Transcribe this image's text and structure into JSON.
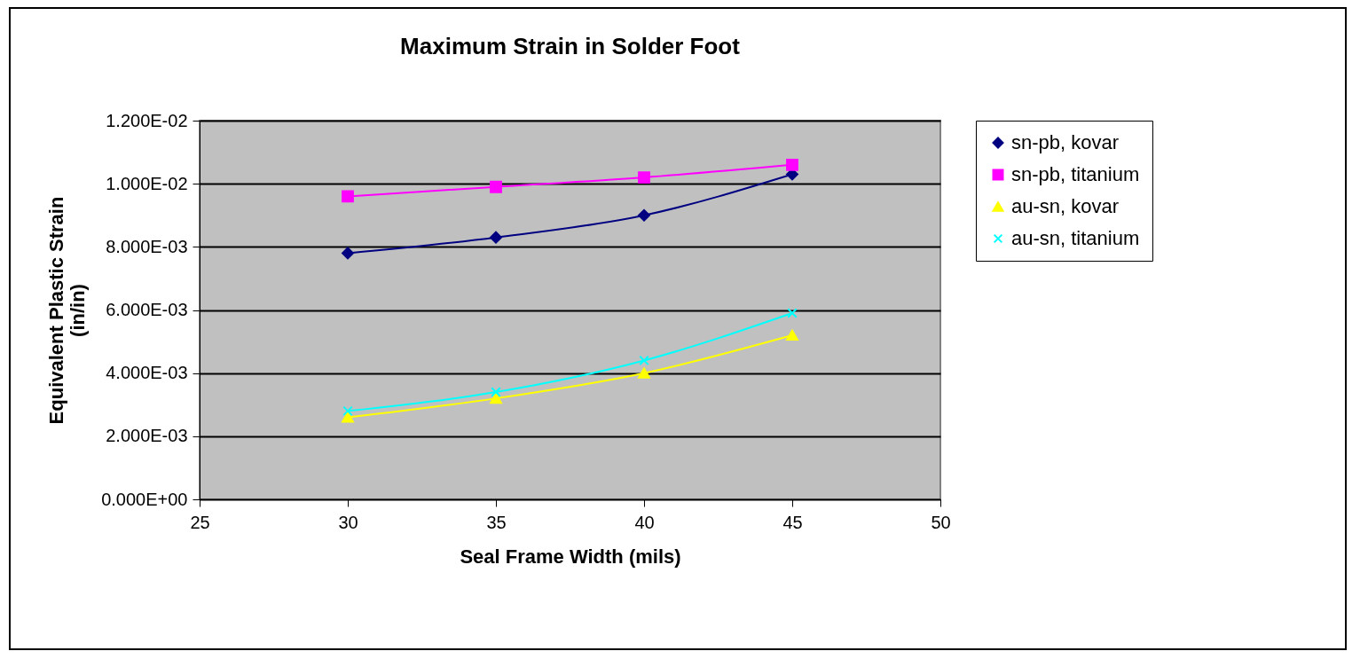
{
  "chart_data": {
    "type": "line",
    "title": "Maximum Strain in Solder Foot",
    "xlabel": "Seal Frame Width (mils)",
    "ylabel": "Equivalent Plastic Strain\n(in/in)",
    "x": [
      30,
      35,
      40,
      45
    ],
    "series": [
      {
        "name": "sn-pb, kovar",
        "color": "#000080",
        "marker": "diamond",
        "values": [
          0.0078,
          0.0083,
          0.009,
          0.0103
        ]
      },
      {
        "name": "sn-pb, titanium",
        "color": "#ff00ff",
        "marker": "square",
        "values": [
          0.0096,
          0.0099,
          0.0102,
          0.0106
        ]
      },
      {
        "name": "au-sn, kovar",
        "color": "#ffff00",
        "marker": "triangle",
        "values": [
          0.0026,
          0.0032,
          0.004,
          0.0052
        ]
      },
      {
        "name": "au-sn, titanium",
        "color": "#00ffff",
        "marker": "cross",
        "values": [
          0.0028,
          0.0034,
          0.0044,
          0.0059
        ]
      }
    ],
    "xlim": [
      25,
      50
    ],
    "xticks": [
      25,
      30,
      35,
      40,
      45,
      50
    ],
    "ylim": [
      0,
      0.012
    ],
    "yticks": [
      {
        "value": 0,
        "label": "0.000E+00"
      },
      {
        "value": 0.002,
        "label": "2.000E-03"
      },
      {
        "value": 0.004,
        "label": "4.000E-03"
      },
      {
        "value": 0.006,
        "label": "6.000E-03"
      },
      {
        "value": 0.008,
        "label": "8.000E-03"
      },
      {
        "value": 0.01,
        "label": "1.000E-02"
      },
      {
        "value": 0.012,
        "label": "1.200E-02"
      }
    ],
    "grid": "y",
    "legend": "right",
    "line_style": "solid"
  }
}
